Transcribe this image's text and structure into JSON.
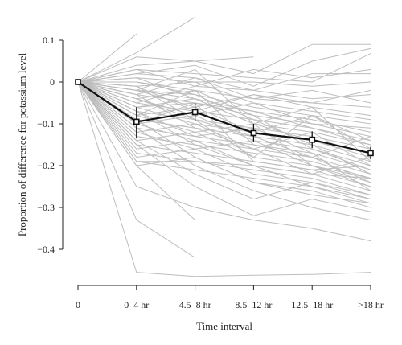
{
  "chart_data": {
    "type": "line",
    "title": "",
    "xlabel": "Time interval",
    "ylabel": "Proportion of difference for potassium level",
    "categories": [
      "0",
      "0–4 hr",
      "4.5–8 hr",
      "8.5–12 hr",
      "12.5–18 hr",
      ">18 hr"
    ],
    "ylim": [
      -0.45,
      0.12
    ],
    "yticks": [
      0.1,
      0,
      -0.1,
      -0.2,
      -0.3,
      -0.4
    ],
    "ytick_labels": [
      "0.1",
      "0",
      "−0.1",
      "−0.2",
      "−0.3",
      "−0.4"
    ],
    "grid": false,
    "legend": "none",
    "mean_series": {
      "values": [
        0.0,
        -0.095,
        -0.072,
        -0.122,
        -0.138,
        -0.17
      ],
      "error_low": [
        0.0,
        -0.135,
        -0.092,
        -0.142,
        -0.158,
        -0.185
      ],
      "error_high": [
        0.0,
        -0.06,
        -0.05,
        -0.1,
        -0.118,
        -0.155
      ],
      "color": "#111111"
    },
    "individual_series_color": "#bdbdbd",
    "individual_series": [
      {
        "values": [
          0,
          0.115,
          null,
          null,
          null,
          null
        ]
      },
      {
        "values": [
          0,
          0.07,
          0.155,
          null,
          null,
          null
        ]
      },
      {
        "values": [
          0,
          0.06,
          0.05,
          0.06,
          null,
          null
        ]
      },
      {
        "values": [
          0,
          0.04,
          0.05,
          0.02,
          0.09,
          0.09
        ]
      },
      {
        "values": [
          0,
          0.03,
          0.02,
          0.01,
          0.0,
          0.068
        ]
      },
      {
        "values": [
          0,
          0.02,
          0.01,
          -0.02,
          0.02,
          0.02
        ]
      },
      {
        "values": [
          0,
          0.01,
          0.0,
          0.0,
          -0.01,
          0.0
        ]
      },
      {
        "values": [
          0,
          0.0,
          -0.02,
          -0.04,
          -0.05,
          -0.06
        ]
      },
      {
        "values": [
          0,
          -0.01,
          0.0,
          -0.05,
          -0.07,
          -0.09
        ]
      },
      {
        "values": [
          0,
          -0.02,
          -0.03,
          -0.06,
          -0.08,
          -0.1
        ]
      },
      {
        "values": [
          0,
          -0.03,
          -0.05,
          -0.07,
          -0.09,
          -0.12
        ]
      },
      {
        "values": [
          0,
          -0.04,
          -0.02,
          -0.08,
          -0.1,
          -0.13
        ]
      },
      {
        "values": [
          0,
          -0.05,
          -0.07,
          -0.09,
          -0.11,
          -0.14
        ]
      },
      {
        "values": [
          0,
          -0.06,
          -0.04,
          -0.1,
          -0.12,
          -0.15
        ]
      },
      {
        "values": [
          0,
          -0.07,
          -0.09,
          -0.11,
          -0.13,
          -0.16
        ]
      },
      {
        "values": [
          0,
          -0.08,
          -0.06,
          -0.12,
          -0.14,
          -0.18
        ]
      },
      {
        "values": [
          0,
          -0.09,
          -0.11,
          -0.13,
          -0.15,
          -0.19
        ]
      },
      {
        "values": [
          0,
          -0.1,
          -0.08,
          -0.14,
          -0.16,
          -0.2
        ]
      },
      {
        "values": [
          0,
          -0.11,
          -0.13,
          -0.15,
          -0.17,
          -0.21
        ]
      },
      {
        "values": [
          0,
          -0.12,
          -0.1,
          -0.16,
          -0.18,
          -0.22
        ]
      },
      {
        "values": [
          0,
          -0.13,
          -0.15,
          -0.17,
          -0.19,
          -0.23
        ]
      },
      {
        "values": [
          0,
          -0.14,
          -0.12,
          -0.18,
          -0.2,
          -0.24
        ]
      },
      {
        "values": [
          0,
          -0.15,
          -0.17,
          -0.19,
          -0.21,
          -0.25
        ]
      },
      {
        "values": [
          0,
          -0.16,
          -0.14,
          -0.2,
          -0.22,
          -0.26
        ]
      },
      {
        "values": [
          0,
          -0.17,
          -0.19,
          -0.21,
          -0.23,
          -0.27
        ]
      },
      {
        "values": [
          0,
          -0.18,
          -0.16,
          -0.22,
          -0.24,
          -0.28
        ]
      },
      {
        "values": [
          0,
          -0.19,
          -0.21,
          -0.23,
          -0.25,
          -0.29
        ]
      },
      {
        "values": [
          0,
          -0.2,
          -0.18,
          -0.24,
          -0.26,
          -0.3
        ]
      },
      {
        "values": [
          0,
          -0.03,
          0.01,
          -0.04,
          -0.02,
          -0.05
        ]
      },
      {
        "values": [
          0,
          -0.05,
          -0.01,
          -0.02,
          -0.04,
          -0.03
        ]
      },
      {
        "values": [
          0,
          -0.02,
          -0.06,
          -0.03,
          -0.06,
          -0.08
        ]
      },
      {
        "values": [
          0,
          -0.04,
          -0.08,
          -0.05,
          -0.1,
          -0.11
        ]
      },
      {
        "values": [
          0,
          -0.06,
          -0.1,
          -0.12,
          -0.08,
          -0.16
        ]
      },
      {
        "values": [
          0,
          -0.08,
          -0.12,
          -0.1,
          -0.14,
          -0.17
        ]
      },
      {
        "values": [
          0,
          -0.1,
          -0.14,
          -0.16,
          -0.12,
          -0.2
        ]
      },
      {
        "values": [
          0,
          -0.12,
          -0.16,
          -0.14,
          -0.2,
          -0.23
        ]
      },
      {
        "values": [
          0,
          -0.02,
          0.03,
          -0.1,
          -0.2,
          -0.25
        ]
      },
      {
        "values": [
          0,
          -0.01,
          -0.09,
          -0.18,
          -0.08,
          -0.14
        ]
      },
      {
        "values": [
          0,
          -0.11,
          -0.2,
          -0.26,
          -0.3,
          -0.33
        ]
      },
      {
        "values": [
          0,
          -0.14,
          -0.22,
          -0.28,
          -0.24,
          -0.27
        ]
      },
      {
        "values": [
          0,
          -0.15,
          -0.25,
          -0.32,
          -0.28,
          -0.31
        ]
      },
      {
        "values": [
          0,
          -0.09,
          -0.18,
          -0.24,
          -0.27,
          -0.29
        ]
      },
      {
        "values": [
          0,
          -0.07,
          -0.15,
          -0.2,
          -0.25,
          -0.28
        ]
      },
      {
        "values": [
          0,
          -0.19,
          -0.19,
          -0.2,
          -0.22,
          -0.23
        ]
      },
      {
        "values": [
          0,
          -0.2,
          -0.33,
          null,
          null,
          null
        ]
      },
      {
        "values": [
          0,
          -0.33,
          -0.42,
          null,
          null,
          null
        ]
      },
      {
        "values": [
          0,
          -0.455,
          -0.465,
          -0.462,
          -0.46,
          -0.455
        ]
      },
      {
        "values": [
          0,
          -0.25,
          -0.3,
          -0.33,
          -0.35,
          -0.38
        ]
      },
      {
        "values": [
          0,
          -0.08,
          -0.02,
          -0.15,
          -0.18,
          -0.13
        ]
      },
      {
        "values": [
          0,
          -0.01,
          -0.07,
          -0.03,
          -0.05,
          -0.02
        ]
      },
      {
        "values": [
          0,
          0.01,
          -0.04,
          -0.1,
          -0.06,
          -0.19
        ]
      },
      {
        "values": [
          0,
          -0.03,
          -0.11,
          -0.16,
          -0.22,
          -0.18
        ]
      },
      {
        "values": [
          0,
          -0.06,
          -0.05,
          -0.08,
          -0.16,
          -0.21
        ]
      },
      {
        "values": [
          0,
          -0.04,
          -0.09,
          -0.13,
          -0.18,
          -0.24
        ]
      },
      {
        "values": [
          0,
          -0.02,
          -0.04,
          -0.07,
          -0.11,
          -0.15
        ]
      },
      {
        "values": [
          0,
          0.0,
          -0.03,
          -0.09,
          -0.15,
          -0.22
        ]
      },
      {
        "values": [
          0,
          -0.07,
          -0.13,
          -0.11,
          -0.17,
          -0.26
        ]
      },
      {
        "values": [
          0,
          -0.1,
          -0.05,
          -0.19,
          -0.21,
          -0.2
        ]
      },
      {
        "values": [
          0,
          0.02,
          0.04,
          -0.01,
          0.05,
          0.08
        ]
      },
      {
        "values": [
          0,
          0.03,
          -0.01,
          0.03,
          0.01,
          0.03
        ]
      }
    ]
  }
}
